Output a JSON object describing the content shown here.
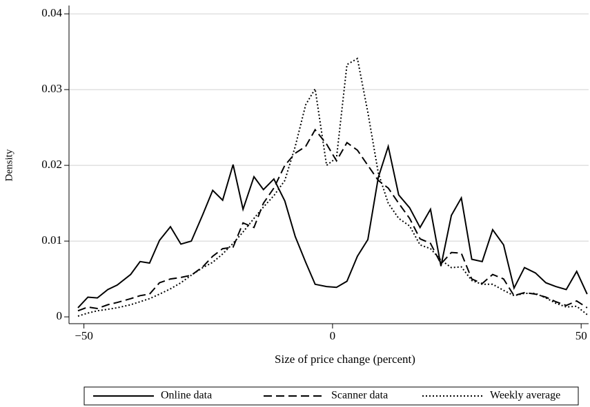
{
  "chart_data": {
    "type": "line",
    "x_label": "Size of price change (percent)",
    "y_label": "Density",
    "x": [
      -51.2,
      -49.2,
      -47.3,
      -45.2,
      -43.3,
      -40.6,
      -38.7,
      -36.8,
      -34.8,
      -32.6,
      -30.5,
      -28.4,
      -26.1,
      -24.1,
      -22.1,
      -20.0,
      -18.0,
      -15.8,
      -13.9,
      -11.8,
      -9.6,
      -7.5,
      -5.4,
      -3.5,
      -1.2,
      0.8,
      2.9,
      5.0,
      7.1,
      9.2,
      11.2,
      13.3,
      15.5,
      17.6,
      19.7,
      21.8,
      23.9,
      25.9,
      28.0,
      30.1,
      32.2,
      34.4,
      36.5,
      38.6,
      40.8,
      42.9,
      44.9,
      47.0,
      49.1,
      51.2
    ],
    "series": [
      {
        "name": "Online data",
        "color": "#000000",
        "dash": "solid",
        "values": [
          0.0012,
          0.0026,
          0.0025,
          0.0036,
          0.0042,
          0.0056,
          0.0073,
          0.0071,
          0.0101,
          0.0119,
          0.0096,
          0.01,
          0.0135,
          0.0167,
          0.0154,
          0.0201,
          0.0142,
          0.0185,
          0.0168,
          0.0182,
          0.0153,
          0.0106,
          0.0072,
          0.0043,
          0.004,
          0.0039,
          0.0047,
          0.008,
          0.0102,
          0.0184,
          0.0225,
          0.0161,
          0.0144,
          0.0118,
          0.0142,
          0.0067,
          0.0134,
          0.0157,
          0.0076,
          0.0073,
          0.0115,
          0.0095,
          0.0038,
          0.0065,
          0.0058,
          0.0045,
          0.004,
          0.0036,
          0.006,
          0.003
        ]
      },
      {
        "name": "Scanner data",
        "color": "#000000",
        "dash": "dashed",
        "values": [
          0.0008,
          0.0013,
          0.0011,
          0.0016,
          0.0019,
          0.0024,
          0.0028,
          0.003,
          0.0045,
          0.005,
          0.0052,
          0.0055,
          0.0066,
          0.008,
          0.009,
          0.0092,
          0.0124,
          0.0118,
          0.015,
          0.017,
          0.02,
          0.0216,
          0.0225,
          0.0247,
          0.0228,
          0.0206,
          0.023,
          0.022,
          0.02,
          0.018,
          0.017,
          0.015,
          0.013,
          0.0103,
          0.0097,
          0.007,
          0.0085,
          0.0084,
          0.005,
          0.0044,
          0.0056,
          0.005,
          0.0028,
          0.0032,
          0.003,
          0.0026,
          0.002,
          0.0015,
          0.0021,
          0.0012
        ]
      },
      {
        "name": "Weekly average",
        "color": "#000000",
        "dash": "dotted",
        "values": [
          0.0001,
          0.0005,
          0.0008,
          0.001,
          0.0012,
          0.0016,
          0.002,
          0.0024,
          0.003,
          0.0037,
          0.0045,
          0.0055,
          0.0065,
          0.0072,
          0.0083,
          0.0097,
          0.0112,
          0.013,
          0.0145,
          0.016,
          0.018,
          0.0225,
          0.028,
          0.0301,
          0.02,
          0.021,
          0.0333,
          0.0341,
          0.027,
          0.019,
          0.015,
          0.013,
          0.012,
          0.0095,
          0.009,
          0.0075,
          0.0065,
          0.0066,
          0.0048,
          0.0043,
          0.0043,
          0.0035,
          0.0028,
          0.0031,
          0.0031,
          0.0025,
          0.0018,
          0.0013,
          0.0014,
          0.0003
        ]
      }
    ],
    "xlim": [
      -53,
      51.5
    ],
    "ylim": [
      -0.0009,
      0.0411
    ],
    "xticks": [
      {
        "value": -50,
        "label": "−50"
      },
      0,
      50
    ],
    "yticks": [
      0,
      0.01,
      0.02,
      0.03,
      0.04
    ],
    "grid": true,
    "legend": "bottom"
  }
}
